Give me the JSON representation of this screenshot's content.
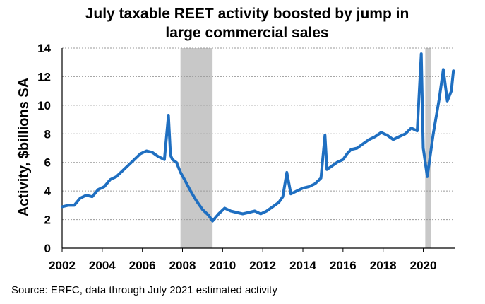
{
  "chart_data": {
    "type": "line",
    "title": "July taxable REET activity boosted by jump in large commercial sales",
    "title_lines": [
      "July taxable REET activity boosted by jump in",
      "large commercial sales"
    ],
    "ylabel": "Activity, $billions SA",
    "xlabel": "",
    "ylim": [
      0,
      14
    ],
    "xlim": [
      2002,
      2021.6
    ],
    "y_ticks": [
      0,
      2,
      4,
      6,
      8,
      10,
      12,
      14
    ],
    "x_ticks": [
      2002,
      2004,
      2006,
      2008,
      2010,
      2012,
      2014,
      2016,
      2018,
      2020
    ],
    "grid": "horizontal dashed",
    "line_color": "#1f6fc1",
    "recession_color": "#c8c8c8",
    "recessions": [
      [
        2007.9,
        2009.5
      ],
      [
        2020.1,
        2020.4
      ]
    ],
    "series": [
      {
        "x": [
          2002.0,
          2002.3,
          2002.6,
          2002.9,
          2003.2,
          2003.5,
          2003.8,
          2004.1,
          2004.4,
          2004.7,
          2005.0,
          2005.3,
          2005.6,
          2005.9,
          2006.2,
          2006.5,
          2006.8,
          2007.1,
          2007.3,
          2007.4,
          2007.5,
          2007.7,
          2007.9,
          2008.1,
          2008.4,
          2008.7,
          2009.0,
          2009.3,
          2009.5,
          2009.8,
          2010.1,
          2010.4,
          2010.7,
          2011.0,
          2011.3,
          2011.6,
          2011.9,
          2012.2,
          2012.5,
          2012.8,
          2013.0,
          2013.2,
          2013.4,
          2013.7,
          2014.0,
          2014.3,
          2014.6,
          2014.9,
          2015.1,
          2015.2,
          2015.4,
          2015.7,
          2016.0,
          2016.2,
          2016.4,
          2016.7,
          2017.0,
          2017.3,
          2017.6,
          2017.9,
          2018.2,
          2018.5,
          2018.8,
          2019.1,
          2019.4,
          2019.7,
          2019.9,
          2020.0,
          2020.2,
          2020.5,
          2020.8,
          2021.0,
          2021.2,
          2021.4,
          2021.5
        ],
        "y": [
          2.9,
          3.0,
          3.0,
          3.5,
          3.7,
          3.6,
          4.1,
          4.3,
          4.8,
          5.0,
          5.4,
          5.8,
          6.2,
          6.6,
          6.8,
          6.7,
          6.4,
          6.2,
          9.3,
          6.5,
          6.2,
          6.0,
          5.3,
          4.8,
          4.0,
          3.3,
          2.7,
          2.3,
          1.9,
          2.4,
          2.8,
          2.6,
          2.5,
          2.4,
          2.5,
          2.6,
          2.4,
          2.6,
          2.9,
          3.2,
          3.6,
          5.3,
          3.8,
          4.0,
          4.2,
          4.3,
          4.5,
          4.9,
          7.9,
          5.5,
          5.7,
          6.0,
          6.2,
          6.6,
          6.9,
          7.0,
          7.3,
          7.6,
          7.8,
          8.1,
          7.9,
          7.6,
          7.8,
          8.0,
          8.4,
          8.2,
          13.6,
          7.0,
          5.0,
          8.0,
          10.5,
          12.5,
          10.3,
          11.0,
          12.4
        ]
      }
    ]
  },
  "source": "Source: ERFC, data through July 2021 estimated activity"
}
